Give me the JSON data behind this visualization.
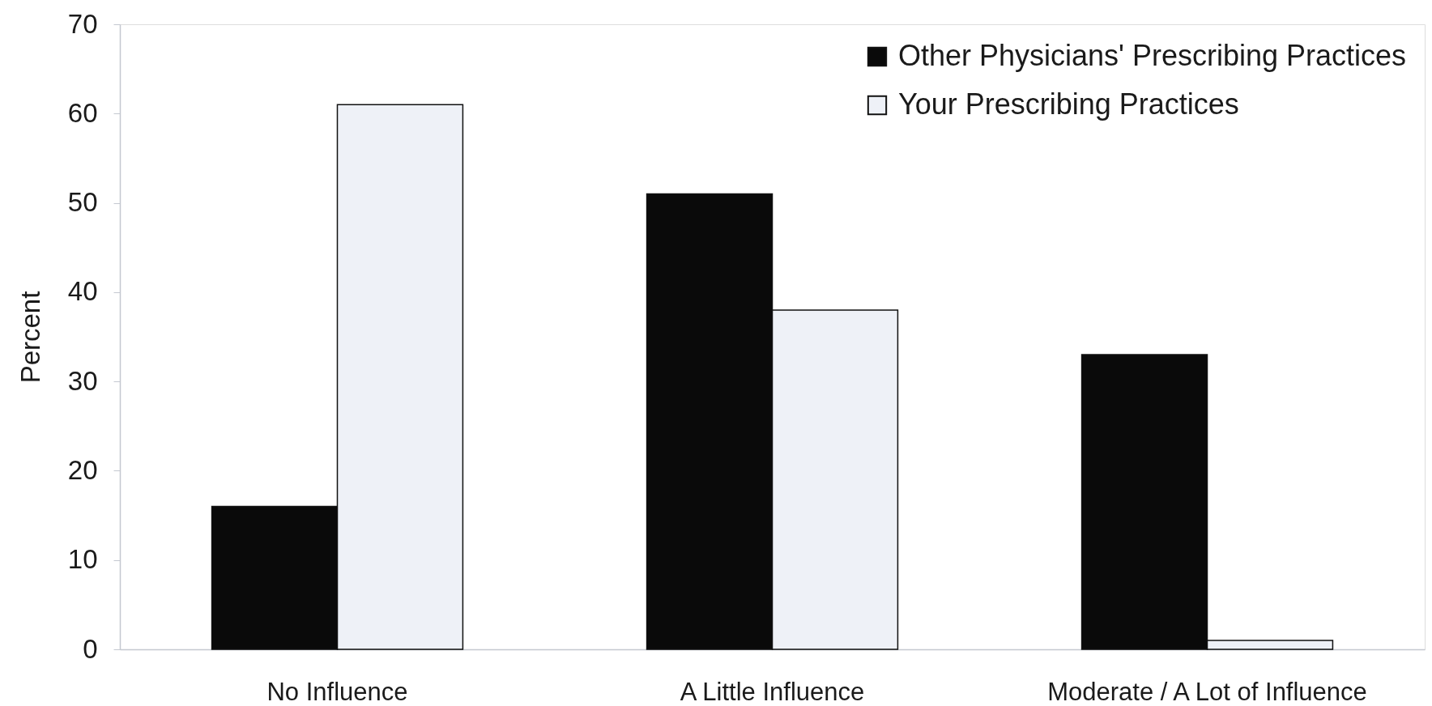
{
  "chart_data": {
    "type": "bar",
    "ylabel": "Percent",
    "categories": [
      "No Influence",
      "A Little Influence",
      "Moderate / A Lot of Influence"
    ],
    "series": [
      {
        "name": "Other Physicians' Prescribing Practices",
        "color": "#0a0a0a",
        "values": [
          16,
          51,
          33
        ]
      },
      {
        "name": "Your Prescribing Practices",
        "color": "#eef1f7",
        "values": [
          61,
          38,
          1
        ]
      }
    ],
    "ylim": [
      0,
      70
    ],
    "yticks": [
      0,
      10,
      20,
      30,
      40,
      50,
      60,
      70
    ],
    "grid": false,
    "legend": "top right"
  }
}
